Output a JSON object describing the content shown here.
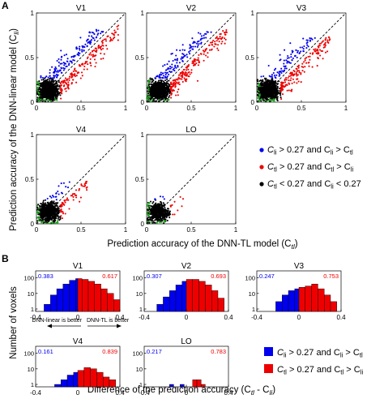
{
  "panel_a_label": "A",
  "panel_b_label": "B",
  "scatter_ylabel": "Prediction accuracy of the DNN-linear model (C",
  "scatter_ylabel_sub": "li",
  "scatter_ylabel_end": ")",
  "scatter_xlabel": "Prediction accuracy of the DNN-TL model (C",
  "scatter_xlabel_sub": "tl",
  "scatter_xlabel_end": ")",
  "hist_ylabel": "Number of voxels",
  "hist_xlabel": "Difference of the prediction accuracy (C",
  "hist_xlabel_sub1": "tl",
  "hist_xlabel_mid": " - C",
  "hist_xlabel_sub2": "li",
  "hist_xlabel_end": ")",
  "arrow_left_text": "DNN-linear is better",
  "arrow_right_text": "DNN-TL is better",
  "colors": {
    "blue": "#0000ee",
    "red": "#ee0000",
    "black": "#000000",
    "green": "#22aa22"
  },
  "scatter_legend": [
    {
      "color": "blue",
      "parts": [
        "C",
        "li",
        " > 0.27 and C",
        "li",
        " > C",
        "tl"
      ]
    },
    {
      "color": "red",
      "parts": [
        "C",
        "tl",
        " > 0.27 and C",
        "tl",
        " > C",
        "li"
      ]
    },
    {
      "color": "black",
      "parts": [
        "C",
        "tl",
        " < 0.27 and C",
        "li",
        " < 0.27"
      ]
    }
  ],
  "hist_legend": [
    {
      "color": "blue",
      "parts": [
        "C",
        "li",
        " > 0.27 and C",
        "li",
        " > C",
        "tl"
      ]
    },
    {
      "color": "red",
      "parts": [
        "C",
        "tl",
        " > 0.27 and C",
        "tl",
        " > C",
        "li"
      ]
    }
  ],
  "chart_data": [
    {
      "type": "scatter",
      "panel": "A",
      "subplots": [
        "V1",
        "V2",
        "V3",
        "V4",
        "LO"
      ],
      "xlim": [
        0,
        1
      ],
      "ylim": [
        0,
        1
      ],
      "xticks": [
        "0",
        "0.5",
        "1"
      ],
      "yticks": [
        "0",
        "0.5",
        "1"
      ],
      "diagonal": "dashed y = x",
      "threshold": 0.27,
      "series": [
        {
          "color": "blue"
        },
        {
          "color": "red"
        },
        {
          "color": "black"
        }
      ]
    },
    {
      "type": "bar",
      "panel": "B",
      "subtype": "histogram",
      "xlim": [
        -0.4,
        0.4
      ],
      "xticks": [
        "-0.4",
        "0",
        "0.4"
      ],
      "yscale": "log",
      "yticks": [
        "1",
        "10",
        "100"
      ],
      "subplots": [
        {
          "title": "V1",
          "left_fraction": "0.383",
          "right_fraction": "0.617",
          "bins": [
            {
              "x0": -0.32,
              "x1": -0.26,
              "v": 2,
              "c": "blue"
            },
            {
              "x0": -0.26,
              "x1": -0.2,
              "v": 8,
              "c": "blue"
            },
            {
              "x0": -0.2,
              "x1": -0.14,
              "v": 20,
              "c": "blue"
            },
            {
              "x0": -0.14,
              "x1": -0.08,
              "v": 40,
              "c": "blue"
            },
            {
              "x0": -0.08,
              "x1": -0.02,
              "v": 70,
              "c": "blue"
            },
            {
              "x0": -0.02,
              "x1": 0.0,
              "v": 90,
              "c": "blue"
            },
            {
              "x0": 0.0,
              "x1": 0.04,
              "v": 90,
              "c": "red"
            },
            {
              "x0": 0.04,
              "x1": 0.1,
              "v": 80,
              "c": "red"
            },
            {
              "x0": 0.1,
              "x1": 0.16,
              "v": 60,
              "c": "red"
            },
            {
              "x0": 0.16,
              "x1": 0.22,
              "v": 40,
              "c": "red"
            },
            {
              "x0": 0.22,
              "x1": 0.28,
              "v": 20,
              "c": "red"
            },
            {
              "x0": 0.28,
              "x1": 0.34,
              "v": 10,
              "c": "red"
            },
            {
              "x0": 0.34,
              "x1": 0.4,
              "v": 4,
              "c": "red"
            }
          ]
        },
        {
          "title": "V2",
          "left_fraction": "0.307",
          "right_fraction": "0.693",
          "bins": [
            {
              "x0": -0.28,
              "x1": -0.22,
              "v": 2,
              "c": "blue"
            },
            {
              "x0": -0.22,
              "x1": -0.16,
              "v": 6,
              "c": "blue"
            },
            {
              "x0": -0.16,
              "x1": -0.1,
              "v": 15,
              "c": "blue"
            },
            {
              "x0": -0.1,
              "x1": -0.04,
              "v": 35,
              "c": "blue"
            },
            {
              "x0": -0.04,
              "x1": 0.0,
              "v": 60,
              "c": "blue"
            },
            {
              "x0": 0.0,
              "x1": 0.06,
              "v": 80,
              "c": "red"
            },
            {
              "x0": 0.06,
              "x1": 0.12,
              "v": 80,
              "c": "red"
            },
            {
              "x0": 0.12,
              "x1": 0.18,
              "v": 60,
              "c": "red"
            },
            {
              "x0": 0.18,
              "x1": 0.24,
              "v": 35,
              "c": "red"
            },
            {
              "x0": 0.24,
              "x1": 0.3,
              "v": 15,
              "c": "red"
            },
            {
              "x0": 0.3,
              "x1": 0.36,
              "v": 5,
              "c": "red"
            }
          ]
        },
        {
          "title": "V3",
          "left_fraction": "0.247",
          "right_fraction": "0.753",
          "bins": [
            {
              "x0": -0.22,
              "x1": -0.16,
              "v": 3,
              "c": "blue"
            },
            {
              "x0": -0.16,
              "x1": -0.1,
              "v": 8,
              "c": "blue"
            },
            {
              "x0": -0.1,
              "x1": -0.04,
              "v": 15,
              "c": "blue"
            },
            {
              "x0": -0.04,
              "x1": 0.0,
              "v": 20,
              "c": "blue"
            },
            {
              "x0": 0.0,
              "x1": 0.06,
              "v": 25,
              "c": "red"
            },
            {
              "x0": 0.06,
              "x1": 0.12,
              "v": 30,
              "c": "red"
            },
            {
              "x0": 0.12,
              "x1": 0.18,
              "v": 40,
              "c": "red"
            },
            {
              "x0": 0.18,
              "x1": 0.24,
              "v": 20,
              "c": "red"
            },
            {
              "x0": 0.24,
              "x1": 0.3,
              "v": 8,
              "c": "red"
            },
            {
              "x0": 0.3,
              "x1": 0.36,
              "v": 3,
              "c": "red"
            }
          ]
        },
        {
          "title": "V4",
          "left_fraction": "0.161",
          "right_fraction": "0.839",
          "bins": [
            {
              "x0": -0.22,
              "x1": -0.16,
              "v": 1,
              "c": "blue"
            },
            {
              "x0": -0.16,
              "x1": -0.1,
              "v": 2,
              "c": "blue"
            },
            {
              "x0": -0.1,
              "x1": -0.04,
              "v": 4,
              "c": "blue"
            },
            {
              "x0": -0.04,
              "x1": 0.0,
              "v": 6,
              "c": "blue"
            },
            {
              "x0": 0.0,
              "x1": 0.06,
              "v": 8,
              "c": "red"
            },
            {
              "x0": 0.06,
              "x1": 0.12,
              "v": 12,
              "c": "red"
            },
            {
              "x0": 0.12,
              "x1": 0.18,
              "v": 10,
              "c": "red"
            },
            {
              "x0": 0.18,
              "x1": 0.24,
              "v": 6,
              "c": "red"
            },
            {
              "x0": 0.24,
              "x1": 0.3,
              "v": 3,
              "c": "red"
            },
            {
              "x0": 0.3,
              "x1": 0.36,
              "v": 2,
              "c": "red"
            }
          ]
        },
        {
          "title": "LO",
          "left_fraction": "0.217",
          "right_fraction": "0.783",
          "bins": [
            {
              "x0": -0.16,
              "x1": -0.12,
              "v": 1,
              "c": "blue"
            },
            {
              "x0": -0.06,
              "x1": -0.02,
              "v": 1,
              "c": "blue"
            },
            {
              "x0": 0.06,
              "x1": 0.1,
              "v": 2,
              "c": "red"
            },
            {
              "x0": 0.1,
              "x1": 0.14,
              "v": 2,
              "c": "red"
            },
            {
              "x0": 0.14,
              "x1": 0.18,
              "v": 1,
              "c": "red"
            }
          ]
        }
      ]
    }
  ]
}
